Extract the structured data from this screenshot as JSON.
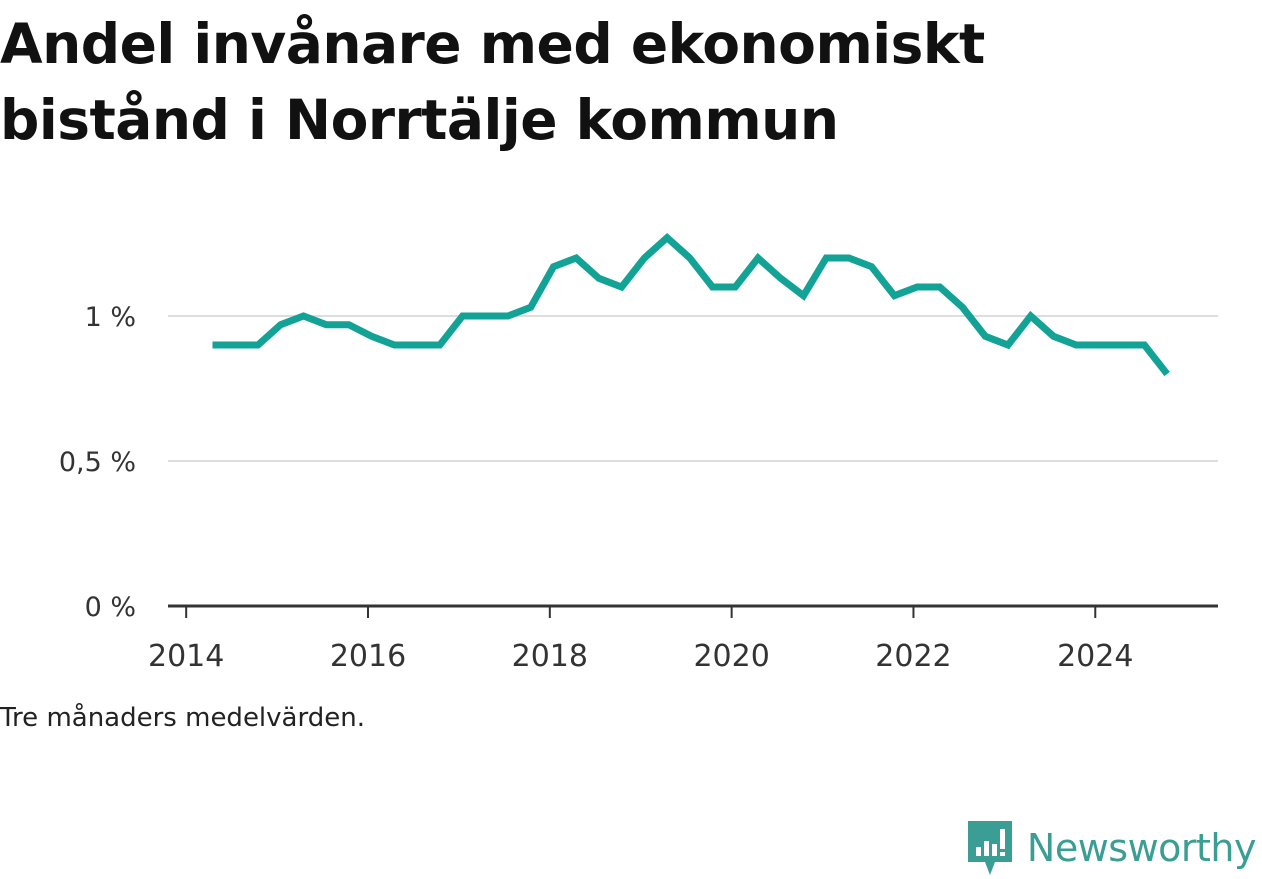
{
  "title": "Andel invånare med ekonomiskt bistånd i Norrtälje kommun",
  "note": "Tre månaders medelvärden.",
  "brand": {
    "name": "Newsworthy",
    "icon": "newsworthy-logo-icon",
    "color": "#3a9e94"
  },
  "colors": {
    "line": "#12a396",
    "grid": "#dddddd",
    "axis": "#333333"
  },
  "chart_data": {
    "type": "line",
    "title": "Andel invånare med ekonomiskt bistånd i Norrtälje kommun",
    "xlabel": "",
    "ylabel": "",
    "x_ticks": [
      "2014",
      "2016",
      "2018",
      "2020",
      "2022",
      "2024"
    ],
    "y_ticks": [
      {
        "value": 0,
        "label": "0 %"
      },
      {
        "value": 0.5,
        "label": "0,5 %"
      },
      {
        "value": 1,
        "label": "1 %"
      }
    ],
    "xlim": [
      2013.8,
      2025.35
    ],
    "ylim": [
      0,
      1.4
    ],
    "grid": true,
    "series": [
      {
        "x": [
          2014.29,
          2014.54,
          2014.79,
          2015.04,
          2015.29,
          2015.54,
          2015.79,
          2016.04,
          2016.29,
          2016.54,
          2016.79,
          2017.04,
          2017.29,
          2017.54,
          2017.79,
          2018.04,
          2018.29,
          2018.54,
          2018.79,
          2019.04,
          2019.29,
          2019.54,
          2019.79,
          2020.04,
          2020.29,
          2020.54,
          2020.79,
          2021.04,
          2021.29,
          2021.54,
          2021.79,
          2022.04,
          2022.29,
          2022.54,
          2022.79,
          2023.04,
          2023.29,
          2023.54,
          2023.79,
          2024.04,
          2024.29,
          2024.54,
          2024.79
        ],
        "values": [
          0.9,
          0.9,
          0.9,
          0.97,
          1.0,
          0.97,
          0.97,
          0.93,
          0.9,
          0.9,
          0.9,
          1.0,
          1.0,
          1.0,
          1.03,
          1.17,
          1.2,
          1.13,
          1.1,
          1.2,
          1.27,
          1.2,
          1.1,
          1.1,
          1.2,
          1.13,
          1.07,
          1.2,
          1.2,
          1.17,
          1.07,
          1.1,
          1.1,
          1.03,
          0.93,
          0.9,
          1.0,
          0.93,
          0.9,
          0.9,
          0.9,
          0.9,
          0.8
        ]
      }
    ]
  }
}
